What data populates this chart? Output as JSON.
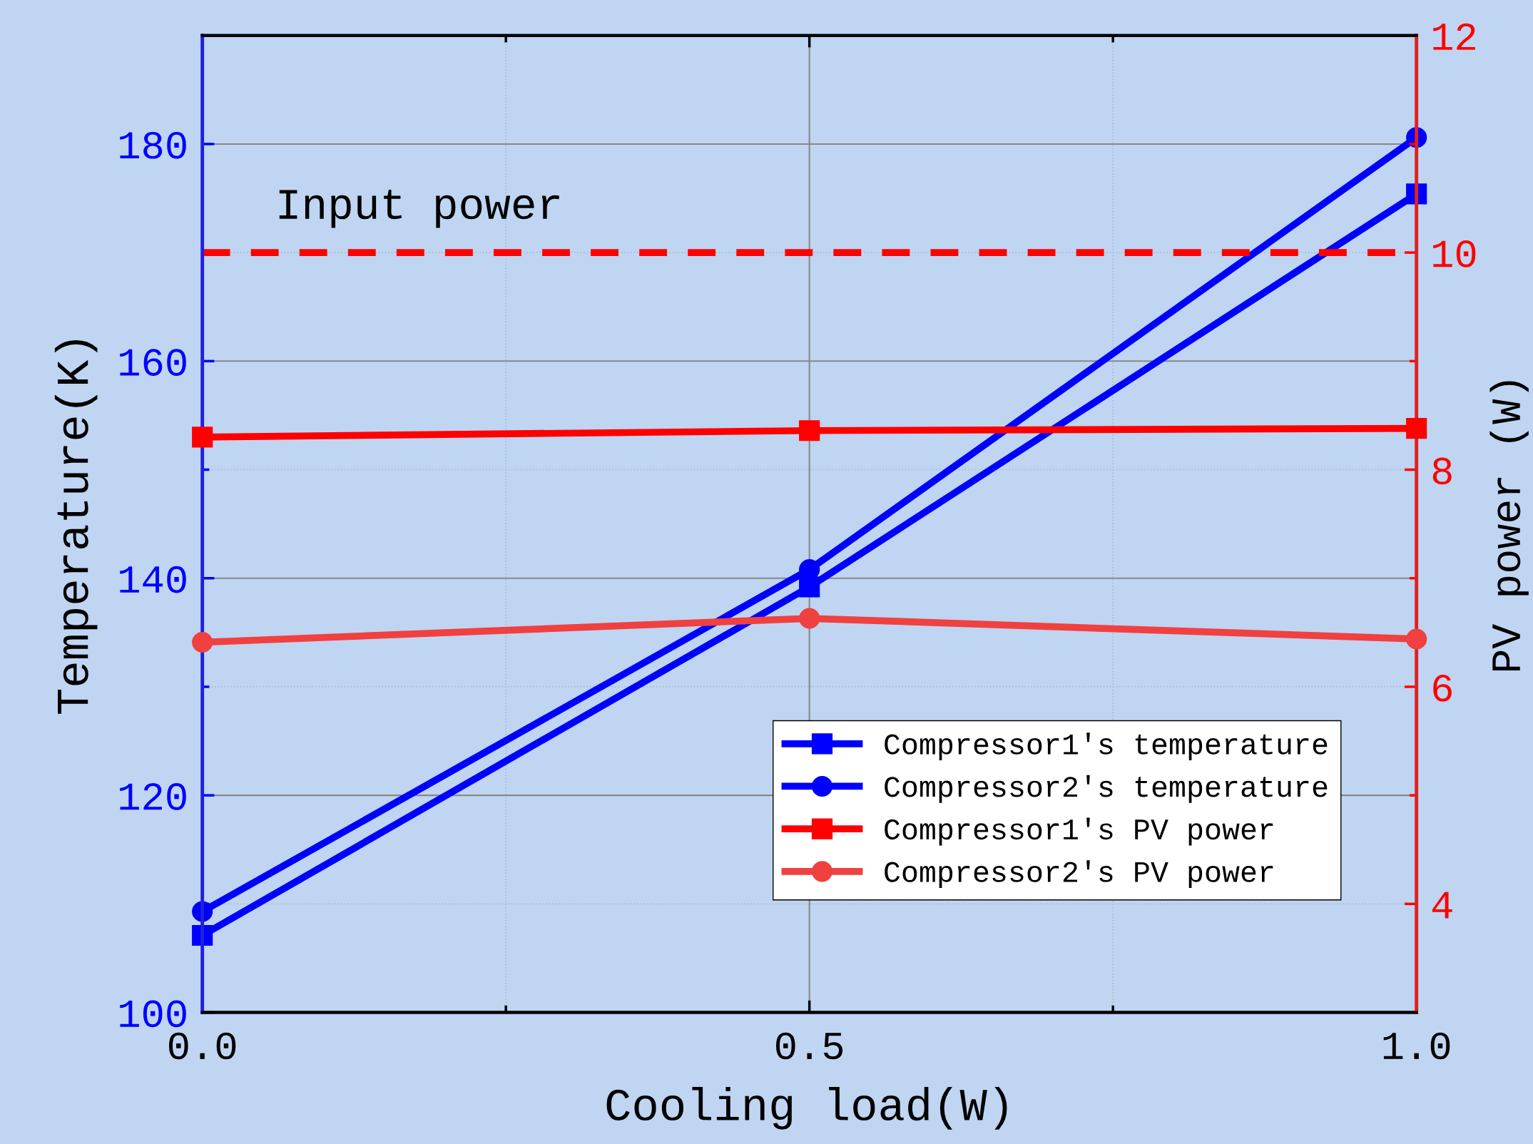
{
  "chart_data": {
    "type": "line",
    "xlabel": "Cooling load(W)",
    "ylabel": "Temperature(K)",
    "y2label": "PV power (W)",
    "x": [
      0.0,
      0.5,
      1.0
    ],
    "series": [
      {
        "name": "Compressor1's temperature",
        "color": "#0000ff",
        "marker": "square",
        "values": [
          107.1,
          139.2,
          175.4
        ]
      },
      {
        "name": "Compressor2's temperature",
        "color": "#0000ff",
        "marker": "circle",
        "values": [
          109.3,
          140.8,
          180.6
        ]
      },
      {
        "name": "Compressor1's PV power",
        "color": "#ff0000",
        "marker": "square",
        "axis": "y2",
        "values": [
          8.3,
          8.36,
          8.38
        ]
      },
      {
        "name": "Compressor2's PV power",
        "color": "#f04040",
        "marker": "circle",
        "axis": "y2",
        "values": [
          6.41,
          6.63,
          6.44
        ]
      }
    ],
    "xlim": [
      0.0,
      1.0
    ],
    "xticks": [
      {
        "value": 0.0,
        "label": "0.0"
      },
      {
        "value": 0.5,
        "label": "0.5"
      },
      {
        "value": 1.0,
        "label": "1.0"
      }
    ],
    "ylim": [
      100,
      190
    ],
    "yticks": [
      100,
      120,
      140,
      160,
      180
    ],
    "y2lim": [
      3,
      12
    ],
    "y2ticks": [
      4,
      6,
      8,
      10,
      12
    ],
    "ref_lines": [
      {
        "axis": "y2",
        "value": 10,
        "label": "Input power",
        "color": "#ff0000",
        "line_style": "dashed"
      }
    ],
    "grid": true,
    "legend": "bottom right",
    "line_style": "solid"
  }
}
